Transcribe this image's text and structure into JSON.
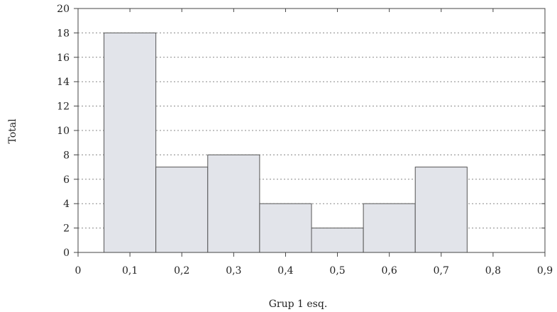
{
  "chart_data": {
    "type": "bar",
    "title": "",
    "xlabel": "Grup 1 esq.",
    "ylabel": "Total",
    "xlim": [
      0,
      0.9
    ],
    "ylim": [
      0,
      20
    ],
    "x_ticks": [
      "0",
      "0,1",
      "0,2",
      "0,3",
      "0,4",
      "0,5",
      "0,6",
      "0,7",
      "0,8",
      "0,9"
    ],
    "y_ticks": [
      "0",
      "2",
      "4",
      "6",
      "8",
      "10",
      "12",
      "14",
      "16",
      "18",
      "20"
    ],
    "bin_width": 0.1,
    "categories": [
      "0,1",
      "0,2",
      "0,3",
      "0,4",
      "0,5",
      "0,6",
      "0,7"
    ],
    "x": [
      0.1,
      0.2,
      0.3,
      0.4,
      0.5,
      0.6,
      0.7
    ],
    "values": [
      18,
      7,
      8,
      4,
      2,
      4,
      7
    ],
    "grid": "horizontal dotted",
    "colors": {
      "bar_fill": "#e2e4ea",
      "bar_stroke": "#555555",
      "grid": "#888888",
      "axis": "#444444"
    }
  }
}
